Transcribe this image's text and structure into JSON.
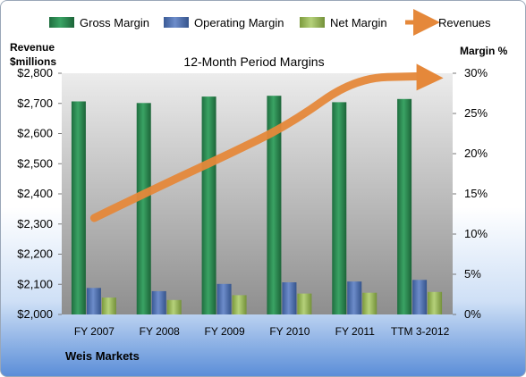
{
  "chart_data": {
    "type": "bar",
    "title": "12-Month Period Margins",
    "categories": [
      "FY 2007",
      "FY 2008",
      "FY 2009",
      "FY 2010",
      "FY 2011",
      "TTM 3-2012"
    ],
    "series": [
      {
        "name": "Gross Margin",
        "axis": "right",
        "values": [
          26.5,
          26.3,
          27.1,
          27.2,
          26.4,
          26.8
        ],
        "color": "#2e8b57"
      },
      {
        "name": "Operating Margin",
        "axis": "right",
        "values": [
          3.3,
          2.9,
          3.8,
          4.0,
          4.1,
          4.3
        ],
        "color": "#4f6fad"
      },
      {
        "name": "Net Margin",
        "axis": "right",
        "values": [
          2.1,
          1.8,
          2.4,
          2.6,
          2.7,
          2.8
        ],
        "color": "#9bbb59"
      },
      {
        "name": "Revenues",
        "axis": "left",
        "type": "line",
        "values": [
          2320,
          2425,
          2525,
          2630,
          2785,
          2790
        ],
        "color": "#e5883a"
      }
    ],
    "left_axis": {
      "title_line1": "Revenue",
      "title_line2": "$millions",
      "ylim": [
        2000,
        2800
      ],
      "ticks": [
        "$2,000",
        "$2,100",
        "$2,200",
        "$2,300",
        "$2,400",
        "$2,500",
        "$2,600",
        "$2,700",
        "$2,800"
      ],
      "tick_values": [
        2000,
        2100,
        2200,
        2300,
        2400,
        2500,
        2600,
        2700,
        2800
      ]
    },
    "right_axis": {
      "title": "Margin %",
      "ylim": [
        0,
        30
      ],
      "ticks": [
        "0%",
        "5%",
        "10%",
        "15%",
        "20%",
        "25%",
        "30%"
      ],
      "tick_values": [
        0,
        5,
        10,
        15,
        20,
        25,
        30
      ]
    },
    "legend": {
      "position": "top",
      "entries": [
        "Gross Margin",
        "Operating Margin",
        "Net Margin",
        "Revenues"
      ]
    },
    "grid": false
  },
  "company": "Weis Markets",
  "colors": {
    "plot_top": "#e6e6e6",
    "plot_bottom": "#8c8c8c",
    "background_bottom": "#5b8ed8"
  }
}
